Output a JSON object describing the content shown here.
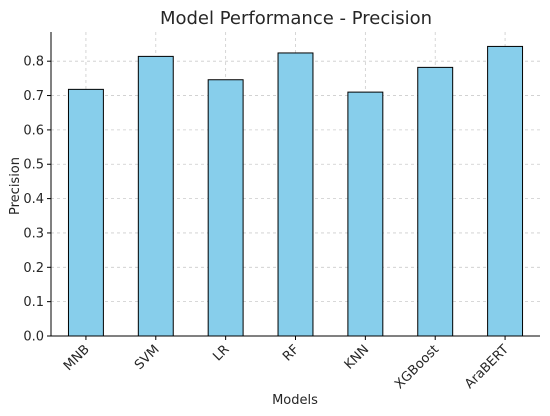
{
  "chart_data": {
    "type": "bar",
    "title": "Model Performance - Precision",
    "xlabel": "Models",
    "ylabel": "Precision",
    "categories": [
      "MNB",
      "SVM",
      "LR",
      "RF",
      "KNN",
      "XGBoost",
      "AraBERT"
    ],
    "values": [
      0.718,
      0.814,
      0.746,
      0.824,
      0.71,
      0.782,
      0.843
    ],
    "ylim": [
      0,
      0.885
    ],
    "yticks": [
      0.0,
      0.1,
      0.2,
      0.3,
      0.4,
      0.5,
      0.6,
      0.7,
      0.8
    ],
    "ytick_labels": [
      "0.0",
      "0.1",
      "0.2",
      "0.3",
      "0.4",
      "0.5",
      "0.6",
      "0.7",
      "0.8"
    ],
    "grid": true,
    "bar_color": "#87ceeb",
    "edge_color": "#000000",
    "grid_color": "#cccccc"
  }
}
